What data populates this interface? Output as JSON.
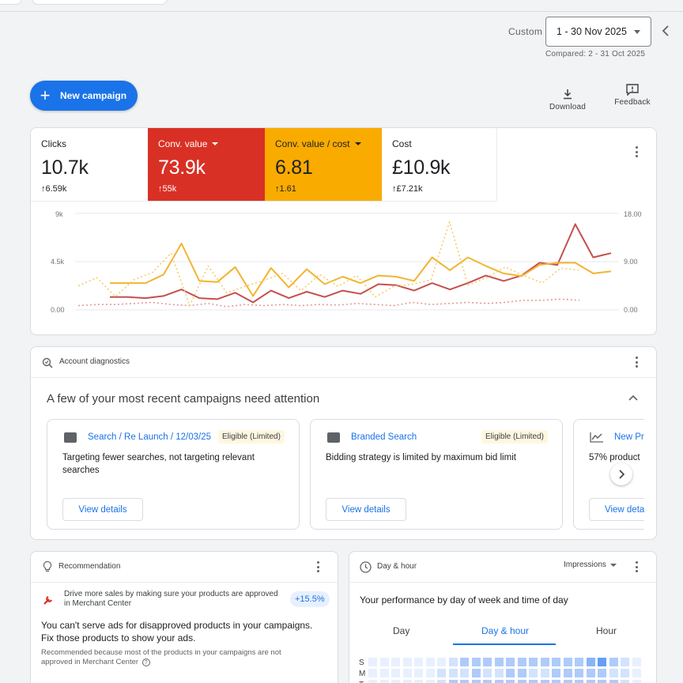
{
  "header": {
    "range_label": "Custom",
    "date_range": "1 - 30 Nov 2025",
    "compared": "Compared: 2 - 31 Oct 2025"
  },
  "actions": {
    "new_campaign": "New campaign",
    "download": "Download",
    "feedback": "Feedback"
  },
  "metrics": [
    {
      "label": "Clicks",
      "value": "10.7k",
      "delta": "6.59k",
      "bg": "#ffffff",
      "fg": "#202124"
    },
    {
      "label": "Conv. value",
      "value": "73.9k",
      "delta": "55k",
      "bg": "#d93025",
      "fg": "#ffffff"
    },
    {
      "label": "Conv. value / cost",
      "value": "6.81",
      "delta": "1.61",
      "bg": "#f9ab00",
      "fg": "#202124"
    },
    {
      "label": "Cost",
      "value": "£10.9k",
      "delta": "£7.21k",
      "bg": "#ffffff",
      "fg": "#202124"
    }
  ],
  "chart": {
    "left_ticks": [
      "9k",
      "4.5k",
      "0.00"
    ],
    "right_ticks": [
      "18.00",
      "9.00",
      "0.00"
    ],
    "colors": {
      "red": "#c5504f",
      "yellow": "#f2b431",
      "red_dotted": "#e49a96",
      "yellow_dotted": "#f6cc6a"
    }
  },
  "chart_data": {
    "type": "line",
    "yaxis_left": {
      "ticks": [
        "0.00",
        "4.5k",
        "9k"
      ],
      "ylim": [
        0,
        9000
      ]
    },
    "yaxis_right": {
      "ticks": [
        "0.00",
        "9.00",
        "18.00"
      ],
      "ylim": [
        0,
        18
      ]
    },
    "series": [
      {
        "values": [
          1200,
          1200,
          1100,
          1300,
          1900,
          1100,
          1000,
          1600,
          700,
          1800,
          1100,
          1700,
          1200,
          1800,
          1500,
          2400,
          2300,
          1800,
          2500,
          1900,
          2500,
          3200,
          2700,
          3200,
          4400,
          4200,
          8000,
          4900,
          5300
        ],
        "axis": "left"
      },
      {
        "values": [
          5.0,
          5.0,
          5.0,
          6.6,
          12.4,
          5.4,
          5.2,
          8.0,
          2.6,
          7.8,
          4.2,
          7.6,
          4.8,
          6.2,
          5.0,
          6.4,
          6.2,
          5.4,
          9.8,
          7.4,
          9.8,
          8.2,
          6.8,
          6.3,
          8.4,
          8.8,
          8.8,
          6.8,
          7.2
        ],
        "axis": "right"
      },
      {
        "values": [
          400,
          500,
          500,
          600,
          700,
          500,
          400,
          600,
          300,
          500,
          400,
          500,
          400,
          500,
          450,
          600,
          500,
          400,
          700,
          500,
          600,
          700,
          600,
          700,
          900,
          900,
          1000,
          900
        ],
        "axis": "left"
      },
      {
        "values": [
          4.5,
          6.0,
          2.5,
          5.6,
          7.0,
          10.6,
          0.8,
          8.2,
          3.2,
          4.4,
          5.5,
          6.8,
          3.6,
          6.6,
          4.4,
          6.4,
          2.4,
          4.4,
          4.8,
          5.6,
          16.4,
          4.6,
          6.0,
          8.0,
          6.4,
          5.0,
          7.8,
          7.4
        ],
        "axis": "right"
      }
    ]
  },
  "diagnostics": {
    "title": "Account diagnostics",
    "heading": "A few of your most recent campaigns need attention",
    "cards": [
      {
        "name": "Search / Re Launch / 12/03/25",
        "status": "Eligible (Limited)",
        "desc": "Targeting fewer searches, not targeting relevant searches",
        "button": "View details"
      },
      {
        "name": "Branded Search",
        "status": "Eligible (Limited)",
        "desc": "Bidding strategy is limited by maximum bid limit",
        "button": "View details"
      },
      {
        "name": "New Pr",
        "status": "",
        "desc": "57% product",
        "button": "View deta"
      }
    ]
  },
  "recommendation": {
    "title": "Recommendation",
    "item_text": "Drive more sales by making sure your products are approved in Merchant Center",
    "badge": "+15.5%",
    "headline": "You can't serve ads for disapproved products in your campaigns. Fix those products to show your ads.",
    "note": "Recommended because most of the products in your campaigns are not approved in Merchant Center"
  },
  "dayhour": {
    "title": "Day & hour",
    "metric_select": "Impressions",
    "subtitle": "Your performance by day of week and time of day",
    "tabs": [
      "Day",
      "Day & hour",
      "Hour"
    ],
    "row_labels": [
      "S",
      "M",
      "T"
    ]
  }
}
